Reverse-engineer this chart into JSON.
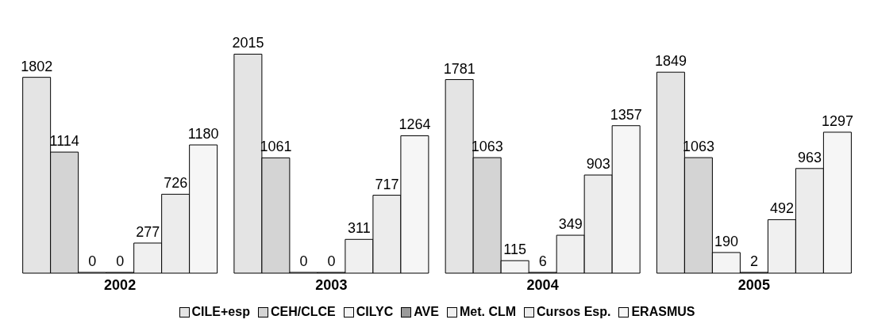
{
  "chart_data": {
    "type": "bar",
    "categories": [
      "2002",
      "2003",
      "2004",
      "2005"
    ],
    "series": [
      {
        "name": "CILE+esp",
        "color": "#e4e4e4",
        "values": [
          1802,
          2015,
          1781,
          1849
        ]
      },
      {
        "name": "CEH/CLCE",
        "color": "#d4d4d4",
        "values": [
          1114,
          1061,
          1063,
          1063
        ]
      },
      {
        "name": "CILYC",
        "color": "#f4f4f4",
        "values": [
          0,
          0,
          115,
          190
        ]
      },
      {
        "name": "AVE",
        "color": "#9a9a9a",
        "values": [
          0,
          0,
          6,
          2
        ]
      },
      {
        "name": "Met. CLM",
        "color": "#f0f0f0",
        "values": [
          277,
          311,
          349,
          492
        ]
      },
      {
        "name": "Cursos Esp.",
        "color": "#ececec",
        "values": [
          726,
          717,
          903,
          963
        ]
      },
      {
        "name": "ERASMUS",
        "color": "#f6f6f6",
        "values": [
          1180,
          1264,
          1357,
          1297
        ]
      }
    ],
    "data_labels": true,
    "grid": false,
    "legend": "bottom"
  }
}
